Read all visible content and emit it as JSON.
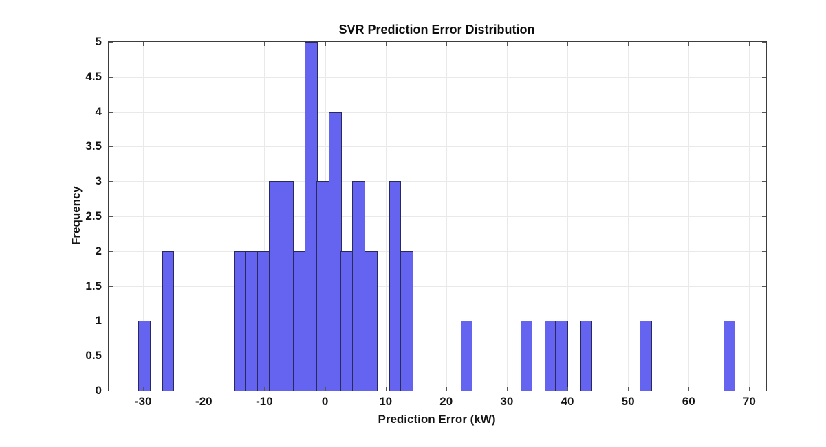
{
  "chart_data": {
    "type": "bar",
    "subtype": "histogram",
    "title": "SVR Prediction Error Distribution",
    "xlabel": "Prediction Error (kW)",
    "ylabel": "Frequency",
    "xlim": [
      -35.7,
      72.8
    ],
    "ylim": [
      0,
      5
    ],
    "grid": true,
    "legend": "none",
    "x_ticks": [
      -30,
      -20,
      -10,
      0,
      10,
      20,
      30,
      40,
      50,
      60,
      70
    ],
    "x_tick_labels": [
      "-30",
      "-20",
      "-10",
      "0",
      "10",
      "20",
      "30",
      "40",
      "50",
      "60",
      "70"
    ],
    "y_ticks": [
      0,
      0.5,
      1,
      1.5,
      2,
      2.5,
      3,
      3.5,
      4,
      4.5,
      5
    ],
    "y_tick_labels": [
      "0",
      "0.5",
      "1",
      "1.5",
      "2",
      "2.5",
      "3",
      "3.5",
      "4",
      "4.5",
      "5"
    ],
    "bin_width": 1.97,
    "bins": [
      {
        "start": -30.77,
        "end": -28.8,
        "count": 1
      },
      {
        "start": -26.83,
        "end": -24.86,
        "count": 2
      },
      {
        "start": -15.01,
        "end": -13.04,
        "count": 2
      },
      {
        "start": -13.04,
        "end": -11.07,
        "count": 2
      },
      {
        "start": -11.07,
        "end": -9.1,
        "count": 2
      },
      {
        "start": -9.1,
        "end": -7.13,
        "count": 3
      },
      {
        "start": -7.13,
        "end": -5.16,
        "count": 3
      },
      {
        "start": -5.16,
        "end": -3.19,
        "count": 2
      },
      {
        "start": -3.19,
        "end": -1.22,
        "count": 5
      },
      {
        "start": -1.22,
        "end": 0.75,
        "count": 3
      },
      {
        "start": 0.75,
        "end": 2.72,
        "count": 4
      },
      {
        "start": 2.72,
        "end": 4.69,
        "count": 2
      },
      {
        "start": 4.69,
        "end": 6.66,
        "count": 3
      },
      {
        "start": 6.66,
        "end": 8.63,
        "count": 2
      },
      {
        "start": 10.6,
        "end": 12.57,
        "count": 3
      },
      {
        "start": 12.57,
        "end": 14.54,
        "count": 2
      },
      {
        "start": 22.42,
        "end": 24.39,
        "count": 1
      },
      {
        "start": 32.27,
        "end": 34.24,
        "count": 1
      },
      {
        "start": 36.21,
        "end": 38.18,
        "count": 1
      },
      {
        "start": 38.18,
        "end": 40.15,
        "count": 1
      },
      {
        "start": 42.12,
        "end": 44.09,
        "count": 1
      },
      {
        "start": 51.97,
        "end": 53.94,
        "count": 1
      },
      {
        "start": 65.76,
        "end": 67.73,
        "count": 1
      }
    ],
    "colors": {
      "bar_fill": "#6464f1",
      "bar_edge": "#29295c",
      "grid": "#e9e9e9",
      "axis": "#3c3c3c",
      "tick": "#565656",
      "text": "#141414"
    }
  }
}
